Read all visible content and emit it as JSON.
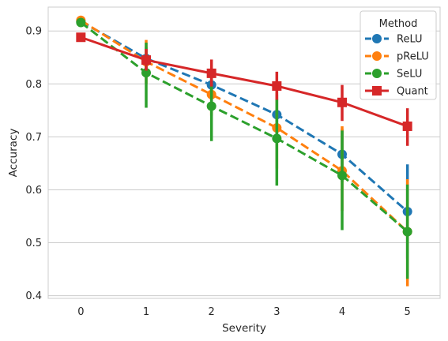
{
  "chart_data": {
    "type": "line",
    "xlabel": "Severity",
    "ylabel": "Accuracy",
    "x": [
      0,
      1,
      2,
      3,
      4,
      5
    ],
    "x_tick_labels": [
      "0",
      "1",
      "2",
      "3",
      "4",
      "5"
    ],
    "ylim": [
      0.395,
      0.945
    ],
    "y_ticks": [
      0.4,
      0.5,
      0.6,
      0.7,
      0.8,
      0.9
    ],
    "y_tick_labels": [
      "0.4",
      "0.5",
      "0.6",
      "0.7",
      "0.8",
      "0.9"
    ],
    "grid": "horizontal",
    "legend": {
      "title": "Method",
      "placement": "top-right"
    },
    "series": [
      {
        "name": "ReLU",
        "color": "#1f77b4",
        "linestyle": "dashed",
        "marker": "circle",
        "values": [
          0.918,
          0.848,
          0.798,
          0.742,
          0.667,
          0.559
        ],
        "error_low": [
          0.91,
          0.825,
          0.775,
          0.7,
          0.615,
          0.47
        ],
        "error_high": [
          0.926,
          0.87,
          0.82,
          0.78,
          0.715,
          0.648
        ]
      },
      {
        "name": "pReLU",
        "color": "#ff7f0e",
        "linestyle": "dashed",
        "marker": "circle",
        "values": [
          0.92,
          0.842,
          0.78,
          0.717,
          0.636,
          0.521
        ],
        "error_low": [
          0.912,
          0.8,
          0.74,
          0.64,
          0.56,
          0.418
        ],
        "error_high": [
          0.928,
          0.883,
          0.815,
          0.79,
          0.72,
          0.62
        ]
      },
      {
        "name": "SeLU",
        "color": "#2ca02c",
        "linestyle": "dashed",
        "marker": "circle",
        "values": [
          0.916,
          0.821,
          0.758,
          0.697,
          0.627,
          0.521
        ],
        "error_low": [
          0.908,
          0.755,
          0.692,
          0.608,
          0.524,
          0.432
        ],
        "error_high": [
          0.924,
          0.878,
          0.82,
          0.772,
          0.712,
          0.61
        ]
      },
      {
        "name": "Quant",
        "color": "#d62728",
        "linestyle": "solid",
        "marker": "square",
        "values": [
          0.888,
          0.845,
          0.82,
          0.796,
          0.765,
          0.72
        ],
        "error_low": [
          0.88,
          0.825,
          0.795,
          0.77,
          0.73,
          0.683
        ],
        "error_high": [
          0.896,
          0.866,
          0.846,
          0.823,
          0.798,
          0.754
        ]
      }
    ]
  }
}
